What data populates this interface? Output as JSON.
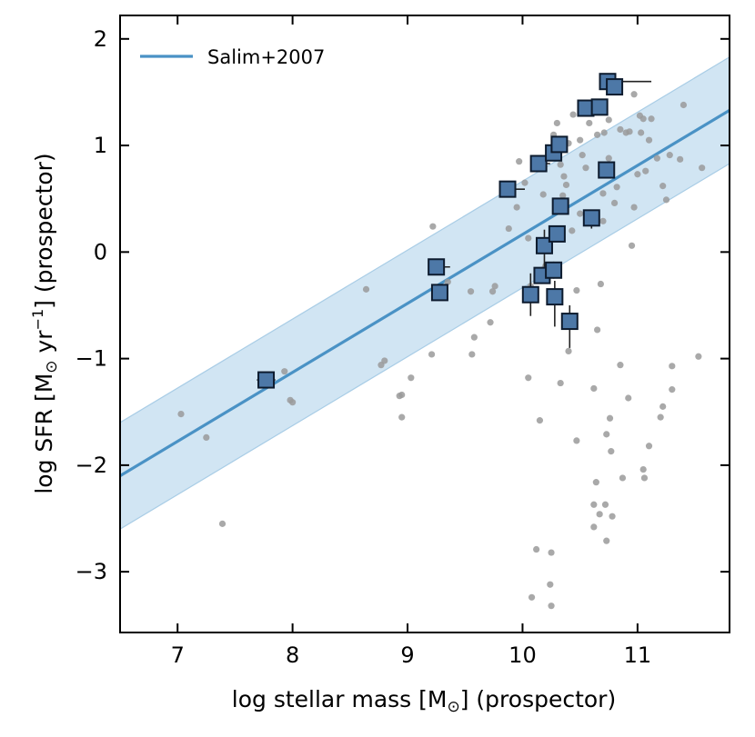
{
  "chart_data": {
    "type": "scatter",
    "xlabel_main": "log stellar mass [M",
    "xlabel_sub": "⊙",
    "xlabel_tail": "] (prospector)",
    "ylabel_main": "log SFR [M",
    "ylabel_sub": "⊙",
    "ylabel_mid": " yr",
    "ylabel_sup": "−1",
    "ylabel_tail": "] (prospector)",
    "xlim": [
      6.5,
      11.8
    ],
    "ylim": [
      -3.57,
      2.22
    ],
    "xticks": [
      7,
      8,
      9,
      10,
      11
    ],
    "yticks": [
      2,
      1,
      0,
      -1,
      -2,
      -3
    ],
    "xtick_labels": [
      "7",
      "8",
      "9",
      "10",
      "11"
    ],
    "ytick_labels": [
      "2",
      "1",
      "0",
      "−1",
      "−2",
      "−3"
    ],
    "legend": {
      "label": "Salim+2007",
      "location": "top-left"
    },
    "relation": {
      "name": "Salim+2007",
      "x": [
        6.5,
        11.8
      ],
      "y": [
        -2.1,
        1.33
      ],
      "band_halfwidth": 0.5,
      "color": "#4a92c5",
      "band_color": "#c9e1f1"
    },
    "background_points": {
      "color": "#9a9a9a",
      "points": [
        [
          7.03,
          -1.52
        ],
        [
          7.25,
          -1.74
        ],
        [
          7.39,
          -2.55
        ],
        [
          7.93,
          -1.12
        ],
        [
          7.98,
          -1.39
        ],
        [
          8.0,
          -1.41
        ],
        [
          8.64,
          -0.35
        ],
        [
          8.77,
          -1.06
        ],
        [
          8.8,
          -1.02
        ],
        [
          8.93,
          -1.35
        ],
        [
          8.95,
          -1.34
        ],
        [
          8.95,
          -1.55
        ],
        [
          9.03,
          -1.18
        ],
        [
          9.21,
          -0.96
        ],
        [
          9.22,
          0.24
        ],
        [
          9.35,
          -0.28
        ],
        [
          9.55,
          -0.37
        ],
        [
          9.56,
          -0.96
        ],
        [
          9.58,
          -0.8
        ],
        [
          9.72,
          -0.66
        ],
        [
          9.74,
          -0.37
        ],
        [
          9.76,
          -0.32
        ],
        [
          9.85,
          0.6
        ],
        [
          9.88,
          0.22
        ],
        [
          9.95,
          0.42
        ],
        [
          9.97,
          0.85
        ],
        [
          10.02,
          0.65
        ],
        [
          10.05,
          0.13
        ],
        [
          10.05,
          -1.18
        ],
        [
          10.07,
          -0.32
        ],
        [
          10.08,
          -3.24
        ],
        [
          10.12,
          -2.79
        ],
        [
          10.15,
          -1.58
        ],
        [
          10.18,
          0.54
        ],
        [
          10.2,
          -0.13
        ],
        [
          10.23,
          0.93
        ],
        [
          10.24,
          -3.12
        ],
        [
          10.25,
          -3.32
        ],
        [
          10.25,
          -2.82
        ],
        [
          10.27,
          1.1
        ],
        [
          10.28,
          0.15
        ],
        [
          10.3,
          -0.38
        ],
        [
          10.3,
          1.21
        ],
        [
          10.33,
          0.82
        ],
        [
          10.33,
          -1.23
        ],
        [
          10.35,
          0.53
        ],
        [
          10.36,
          0.71
        ],
        [
          10.38,
          0.63
        ],
        [
          10.4,
          -0.93
        ],
        [
          10.4,
          1.02
        ],
        [
          10.43,
          0.2
        ],
        [
          10.44,
          1.29
        ],
        [
          10.47,
          -0.36
        ],
        [
          10.47,
          -1.77
        ],
        [
          10.5,
          0.36
        ],
        [
          10.5,
          1.05
        ],
        [
          10.52,
          0.91
        ],
        [
          10.55,
          0.79
        ],
        [
          10.58,
          1.21
        ],
        [
          10.62,
          -1.28
        ],
        [
          10.62,
          -2.37
        ],
        [
          10.62,
          -2.58
        ],
        [
          10.64,
          -2.16
        ],
        [
          10.65,
          -0.73
        ],
        [
          10.65,
          1.1
        ],
        [
          10.67,
          -2.46
        ],
        [
          10.68,
          -0.3
        ],
        [
          10.7,
          0.29
        ],
        [
          10.7,
          0.55
        ],
        [
          10.71,
          1.12
        ],
        [
          10.72,
          -2.37
        ],
        [
          10.73,
          -1.71
        ],
        [
          10.73,
          -2.71
        ],
        [
          10.75,
          1.24
        ],
        [
          10.75,
          0.88
        ],
        [
          10.76,
          -1.56
        ],
        [
          10.77,
          -1.87
        ],
        [
          10.78,
          -2.48
        ],
        [
          10.8,
          0.46
        ],
        [
          10.82,
          0.61
        ],
        [
          10.85,
          1.15
        ],
        [
          10.85,
          -1.06
        ],
        [
          10.87,
          -2.12
        ],
        [
          10.9,
          1.12
        ],
        [
          10.92,
          -1.37
        ],
        [
          10.93,
          1.13
        ],
        [
          10.95,
          0.06
        ],
        [
          10.97,
          1.48
        ],
        [
          10.97,
          0.42
        ],
        [
          11.0,
          0.73
        ],
        [
          11.02,
          1.28
        ],
        [
          11.03,
          1.12
        ],
        [
          11.05,
          1.25
        ],
        [
          11.05,
          -2.04
        ],
        [
          11.06,
          -2.12
        ],
        [
          11.07,
          0.76
        ],
        [
          11.1,
          1.05
        ],
        [
          11.1,
          -1.82
        ],
        [
          11.12,
          1.25
        ],
        [
          11.17,
          0.88
        ],
        [
          11.2,
          -1.55
        ],
        [
          11.22,
          -1.45
        ],
        [
          11.22,
          0.62
        ],
        [
          11.25,
          0.49
        ],
        [
          11.28,
          0.91
        ],
        [
          11.3,
          -1.07
        ],
        [
          11.3,
          -1.29
        ],
        [
          11.37,
          0.87
        ],
        [
          11.4,
          1.38
        ],
        [
          11.53,
          -0.98
        ],
        [
          11.56,
          0.79
        ]
      ]
    },
    "highlighted_points": {
      "face_color": "#4d78a7",
      "edge_color": "#0d1b2e",
      "points": [
        {
          "x": 7.77,
          "y": -1.2,
          "xerr": [
            0.08,
            0.08
          ],
          "yerr": [
            0.03,
            0.03
          ]
        },
        {
          "x": 9.25,
          "y": -0.14,
          "xerr": [
            0.05,
            0.12
          ],
          "yerr": [
            0.03,
            0.03
          ]
        },
        {
          "x": 9.28,
          "y": -0.38,
          "xerr": [
            0.03,
            0.03
          ],
          "yerr": [
            0.03,
            0.03
          ]
        },
        {
          "x": 9.87,
          "y": 0.59,
          "xerr": [
            0.03,
            0.15
          ],
          "yerr": [
            0.03,
            0.03
          ]
        },
        {
          "x": 10.07,
          "y": -0.4,
          "xerr": [
            0.03,
            0.03
          ],
          "yerr": [
            0.2,
            0.2
          ]
        },
        {
          "x": 10.14,
          "y": 0.83,
          "xerr": [
            0.03,
            0.1
          ],
          "yerr": [
            0.03,
            0.03
          ]
        },
        {
          "x": 10.17,
          "y": -0.22,
          "xerr": [
            0.03,
            0.03
          ],
          "yerr": [
            0.08,
            0.08
          ]
        },
        {
          "x": 10.19,
          "y": 0.06,
          "xerr": [
            0.03,
            0.03
          ],
          "yerr": [
            0.2,
            0.15
          ]
        },
        {
          "x": 10.27,
          "y": -0.17,
          "xerr": [
            0.03,
            0.03
          ],
          "yerr": [
            0.08,
            0.08
          ]
        },
        {
          "x": 10.27,
          "y": 0.93,
          "xerr": [
            0.03,
            0.03
          ],
          "yerr": [
            0.03,
            0.03
          ]
        },
        {
          "x": 10.28,
          "y": -0.42,
          "xerr": [
            0.03,
            0.03
          ],
          "yerr": [
            0.28,
            0.15
          ]
        },
        {
          "x": 10.3,
          "y": 0.17,
          "xerr": [
            0.03,
            0.03
          ],
          "yerr": [
            0.03,
            0.03
          ]
        },
        {
          "x": 10.32,
          "y": 1.01,
          "xerr": [
            0.03,
            0.03
          ],
          "yerr": [
            0.03,
            0.03
          ]
        },
        {
          "x": 10.33,
          "y": 0.43,
          "xerr": [
            0.03,
            0.03
          ],
          "yerr": [
            0.03,
            0.03
          ]
        },
        {
          "x": 10.41,
          "y": -0.65,
          "xerr": [
            0.03,
            0.03
          ],
          "yerr": [
            0.25,
            0.15
          ]
        },
        {
          "x": 10.55,
          "y": 1.35,
          "xerr": [
            0.03,
            0.03
          ],
          "yerr": [
            0.03,
            0.03
          ]
        },
        {
          "x": 10.6,
          "y": 0.32,
          "xerr": [
            0.03,
            0.03
          ],
          "yerr": [
            0.1,
            0.05
          ]
        },
        {
          "x": 10.67,
          "y": 1.36,
          "xerr": [
            0.03,
            0.03
          ],
          "yerr": [
            0.03,
            0.03
          ]
        },
        {
          "x": 10.73,
          "y": 0.77,
          "xerr": [
            0.03,
            0.03
          ],
          "yerr": [
            0.03,
            0.03
          ]
        },
        {
          "x": 10.74,
          "y": 1.6,
          "xerr": [
            0.03,
            0.38
          ],
          "yerr": [
            0.03,
            0.03
          ]
        },
        {
          "x": 10.8,
          "y": 1.55,
          "xerr": [
            0.03,
            0.03
          ],
          "yerr": [
            0.03,
            0.03
          ]
        }
      ]
    }
  }
}
